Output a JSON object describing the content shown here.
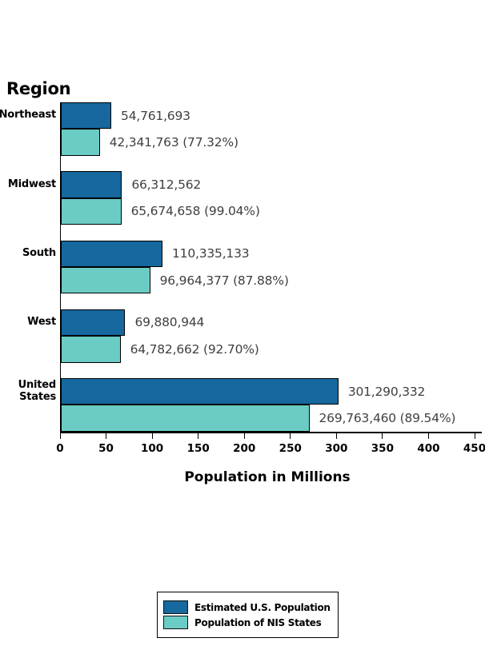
{
  "chart_data": {
    "type": "bar",
    "orientation": "horizontal",
    "title": "Region",
    "xlabel": "Population in Millions",
    "xlim": [
      0,
      450
    ],
    "x_tick_labels": [
      "0",
      "50",
      "100",
      "150",
      "200",
      "250",
      "300",
      "350",
      "400",
      "450"
    ],
    "x_unit_divisor": 1000000,
    "grid": false,
    "legend_position": "bottom",
    "categories": [
      "Northeast",
      "Midwest",
      "South",
      "West",
      "United States"
    ],
    "series": [
      {
        "name": "Estimated U.S. Population",
        "color": "#16689E",
        "values": [
          54761693,
          66312562,
          110335133,
          69880944,
          301290332
        ],
        "labels": [
          "54,761,693",
          "66,312,562",
          "110,335,133",
          "69,880,944",
          "301,290,332"
        ]
      },
      {
        "name": "Population of NIS States",
        "color": "#6BCCC5",
        "values": [
          42341763,
          65674658,
          96964377,
          64782662,
          269763460
        ],
        "labels": [
          "42,341,763 (77.32%)",
          "65,674,658 (99.04%)",
          "96,964,377 (87.88%)",
          "64,782,662 (92.70%)",
          "269,763,460 (89.54%)"
        ]
      }
    ]
  }
}
